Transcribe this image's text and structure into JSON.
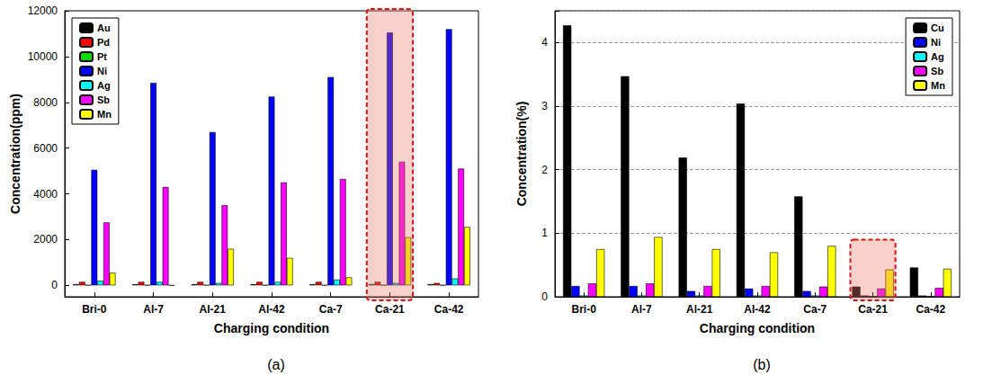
{
  "chart_data": [
    {
      "type": "bar",
      "title": "(a)",
      "x_label": "Charging condition",
      "y_label": "Concentration(ppm)",
      "categories": [
        "Bri-0",
        "Al-7",
        "Al-21",
        "Al-42",
        "Ca-7",
        "Ca-21",
        "Ca-42"
      ],
      "series": [
        {
          "name": "Au",
          "color": "#000000",
          "values": [
            50,
            50,
            50,
            50,
            50,
            50,
            50
          ]
        },
        {
          "name": "Pd",
          "color": "#ff0000",
          "values": [
            150,
            150,
            150,
            150,
            150,
            150,
            100
          ]
        },
        {
          "name": "Pt",
          "color": "#00dd00",
          "values": [
            10,
            10,
            10,
            10,
            10,
            10,
            10
          ]
        },
        {
          "name": "Ni",
          "color": "#0000ff",
          "values": [
            5050,
            8850,
            6700,
            8250,
            9100,
            11050,
            11200
          ]
        },
        {
          "name": "Ag",
          "color": "#00ffff",
          "values": [
            200,
            150,
            100,
            150,
            250,
            100,
            300
          ]
        },
        {
          "name": "Sb",
          "color": "#ff00ff",
          "values": [
            2750,
            4300,
            3500,
            4500,
            4650,
            5400,
            5100
          ]
        },
        {
          "name": "Mn",
          "color": "#ffff00",
          "values": [
            550,
            0,
            1600,
            1200,
            350,
            2100,
            2550
          ]
        }
      ],
      "ylim": [
        -500,
        12000
      ],
      "yticks": [
        0,
        2000,
        4000,
        6000,
        8000,
        10000,
        12000
      ],
      "grid": false,
      "legend": "upper left"
    },
    {
      "type": "bar",
      "title": "(b)",
      "x_label": "Charging condition",
      "y_label": "Concentration(%)",
      "categories": [
        "Bri-0",
        "Al-7",
        "Al-21",
        "Al-42",
        "Ca-7",
        "Ca-21",
        "Ca-42"
      ],
      "series": [
        {
          "name": "Cu",
          "color": "#000000",
          "values": [
            4.27,
            3.47,
            2.19,
            3.04,
            1.58,
            0.16,
            0.46
          ]
        },
        {
          "name": "Ni",
          "color": "#0000ff",
          "values": [
            0.17,
            0.17,
            0.09,
            0.13,
            0.09,
            0.02,
            0.02
          ]
        },
        {
          "name": "Ag",
          "color": "#00ffff",
          "values": [
            0.02,
            0.02,
            0.02,
            0.02,
            0.02,
            0.01,
            0.01
          ]
        },
        {
          "name": "Sb",
          "color": "#ff00ff",
          "values": [
            0.21,
            0.21,
            0.17,
            0.17,
            0.16,
            0.13,
            0.14
          ]
        },
        {
          "name": "Mn",
          "color": "#ffff00",
          "values": [
            0.75,
            0.94,
            0.75,
            0.7,
            0.8,
            0.43,
            0.44
          ]
        }
      ],
      "ylim": [
        0,
        4.5
      ],
      "yticks": [
        0,
        1,
        2,
        3,
        4
      ],
      "grid": true,
      "legend": "upper right"
    }
  ]
}
